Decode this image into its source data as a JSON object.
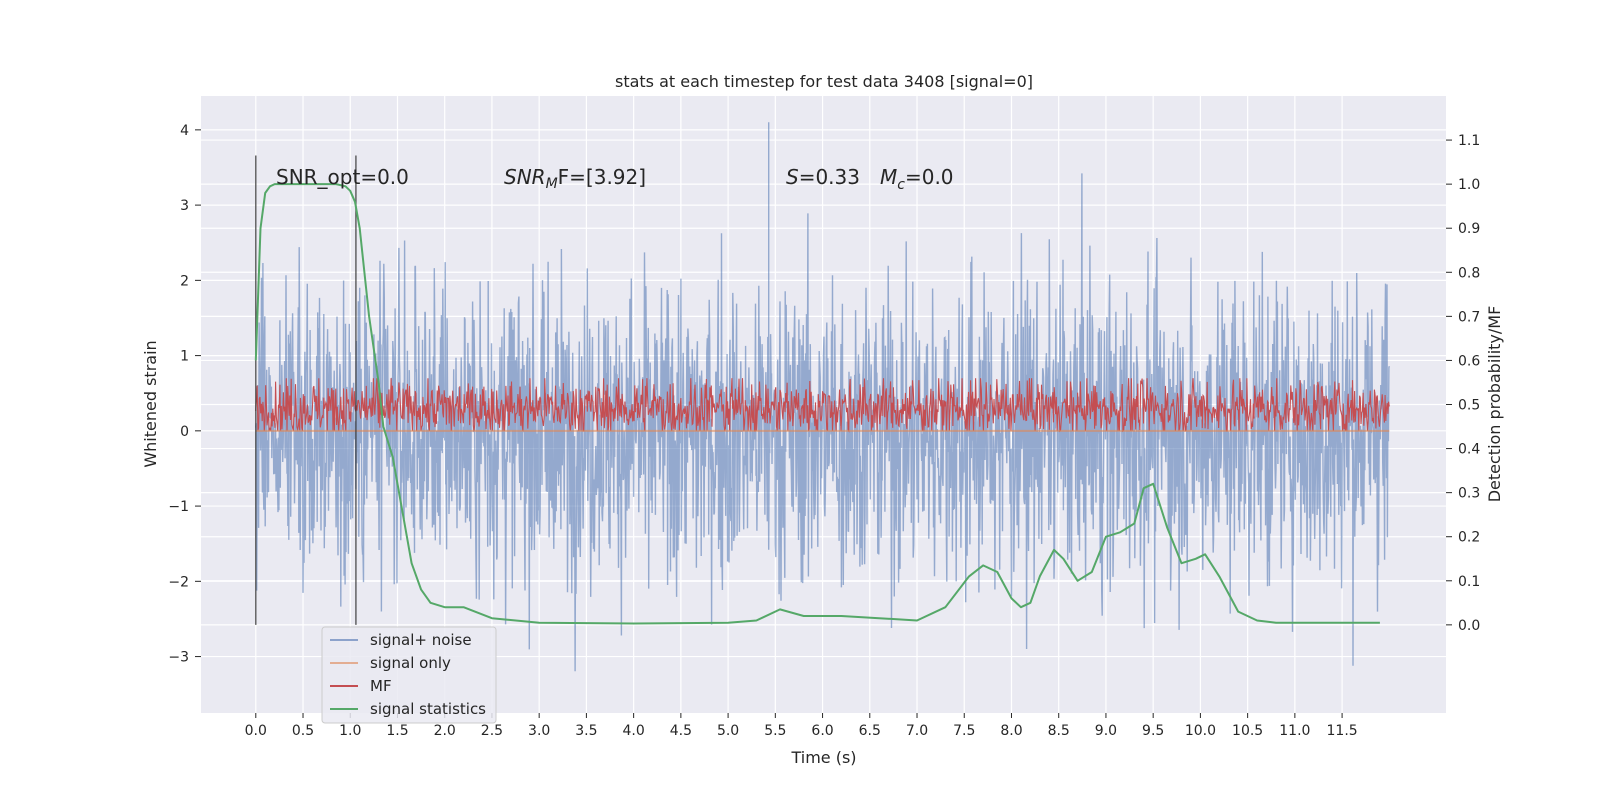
{
  "chart_data": {
    "type": "line",
    "title": "stats at each timestep for test data 3408 [signal=0]",
    "xlabel": "Time (s)",
    "ylabel_left": "Whitened strain",
    "ylabel_right": "Detection probability/MF",
    "xlim": [
      -0.58,
      12.6
    ],
    "ylim_left": [
      -3.75,
      4.45
    ],
    "ylim_right": [
      -0.2,
      1.2
    ],
    "x_ticks": [
      "0.0",
      "0.5",
      "1.0",
      "1.5",
      "2.0",
      "2.5",
      "3.0",
      "3.5",
      "4.0",
      "4.5",
      "5.0",
      "5.5",
      "6.0",
      "6.5",
      "7.0",
      "7.5",
      "8.0",
      "8.5",
      "9.0",
      "9.5",
      "10.0",
      "10.5",
      "11.0",
      "11.5"
    ],
    "y_ticks_left": [
      "4",
      "3",
      "2",
      "1",
      "0",
      "−1",
      "−2",
      "−3"
    ],
    "y_ticks_right": [
      "1.1",
      "1.0",
      "0.9",
      "0.8",
      "0.7",
      "0.6",
      "0.5",
      "0.4",
      "0.3",
      "0.2",
      "0.1",
      "0.0"
    ],
    "grid": true,
    "legend_placement": "lower-left",
    "annotations": {
      "snr_opt": "SNR_opt=0.0",
      "snr_mf_sym": "SNR",
      "snr_mf_sub": "M",
      "snr_mf_rest": "F=[3.92]",
      "s_sym": "S",
      "s_rest": "=0.33",
      "mc_sym": "M",
      "mc_sub": "c",
      "mc_rest": "=0.0"
    },
    "vlines_x": [
      0.0,
      1.06
    ],
    "colors": {
      "background": "#eaeaf2",
      "grid": "#ffffff",
      "noise": "#4c72b0",
      "signal": "#dd8452",
      "mf": "#c44e52",
      "stats": "#55a868"
    },
    "series": [
      {
        "name": "signal+ noise",
        "axis": "left",
        "kind": "noise",
        "x_range": [
          0.0,
          12.0
        ],
        "spread_2sigma": [
          -2.0,
          2.0
        ],
        "extremes": [
          4.1,
          -3.4
        ]
      },
      {
        "name": "signal only",
        "axis": "left",
        "kind": "constant",
        "x": [
          0.0,
          12.0
        ],
        "y": [
          0.0,
          0.0
        ]
      },
      {
        "name": "MF",
        "axis": "left",
        "kind": "band",
        "x_range": [
          0.0,
          12.0
        ],
        "band": [
          0.0,
          0.7
        ],
        "center": 0.3
      },
      {
        "name": "signal statistics",
        "axis": "right",
        "kind": "line",
        "x": [
          0.0,
          0.05,
          0.1,
          0.15,
          0.2,
          0.3,
          0.5,
          0.7,
          0.85,
          0.95,
          1.0,
          1.05,
          1.1,
          1.15,
          1.2,
          1.3,
          1.35,
          1.45,
          1.55,
          1.65,
          1.75,
          1.85,
          2.0,
          2.2,
          2.5,
          3.0,
          4.0,
          5.0,
          5.3,
          5.55,
          5.8,
          6.2,
          6.6,
          7.0,
          7.3,
          7.55,
          7.7,
          7.85,
          8.0,
          8.1,
          8.2,
          8.3,
          8.45,
          8.55,
          8.7,
          8.85,
          9.0,
          9.15,
          9.3,
          9.4,
          9.5,
          9.65,
          9.8,
          9.95,
          10.05,
          10.2,
          10.4,
          10.6,
          10.8,
          11.0,
          11.5,
          11.9
        ],
        "y": [
          0.6,
          0.9,
          0.98,
          0.995,
          1.0,
          1.0,
          1.0,
          1.0,
          1.0,
          0.995,
          0.985,
          0.96,
          0.9,
          0.8,
          0.7,
          0.55,
          0.45,
          0.38,
          0.26,
          0.14,
          0.08,
          0.05,
          0.04,
          0.04,
          0.015,
          0.005,
          0.003,
          0.005,
          0.01,
          0.035,
          0.02,
          0.02,
          0.015,
          0.01,
          0.04,
          0.11,
          0.135,
          0.12,
          0.06,
          0.04,
          0.05,
          0.11,
          0.17,
          0.15,
          0.1,
          0.12,
          0.2,
          0.21,
          0.23,
          0.31,
          0.32,
          0.22,
          0.14,
          0.15,
          0.16,
          0.11,
          0.03,
          0.01,
          0.005,
          0.005,
          0.005,
          0.005
        ]
      }
    ]
  }
}
